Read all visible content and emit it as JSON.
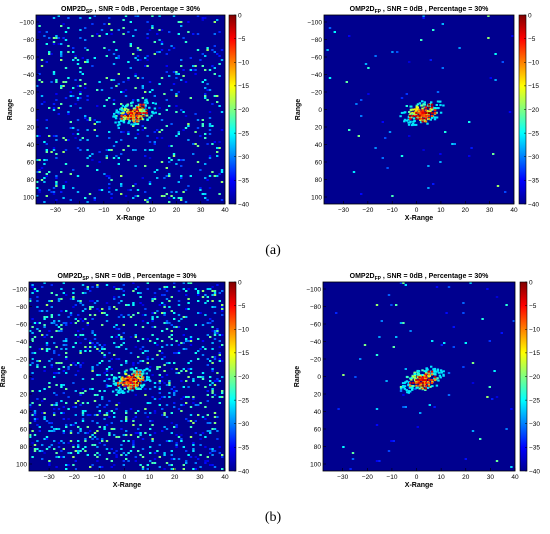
{
  "figure": {
    "captions": [
      "(a)",
      "(b)"
    ]
  },
  "colors": {
    "background": "#00008f",
    "colormap": [
      "#00008f",
      "#0000ff",
      "#0080ff",
      "#00ffff",
      "#80ff80",
      "#ffff00",
      "#ff8000",
      "#ff0000",
      "#800000"
    ]
  },
  "chart_data": [
    {
      "type": "heatmap",
      "title_main": "OMP2D",
      "title_sub": "SP",
      "title_rest": " , SNR = 0dB , Percentage = 30%",
      "xlabel": "X-Range",
      "ylabel": "Range",
      "xlim": [
        -38,
        40
      ],
      "ylim": [
        -108,
        108
      ],
      "y_reversed": true,
      "xticks": [
        "-30",
        "-20",
        "-10",
        "0",
        "10",
        "20",
        "30",
        "40"
      ],
      "yticks": [
        "-100",
        "-80",
        "-60",
        "-40",
        "-20",
        "0",
        "20",
        "40",
        "60",
        "80",
        "100"
      ],
      "clim": [
        -40,
        0
      ],
      "colorbar_ticks": [
        "0",
        "-5",
        "-10",
        "-15",
        "-20",
        "-25",
        "-30",
        "-35",
        "-40"
      ],
      "target_center": [
        2,
        3
      ],
      "background_scatter_fraction": 0.09
    },
    {
      "type": "heatmap",
      "title_main": "OMP2D",
      "title_sub": "FP",
      "title_rest": " , SNR = 0dB , Percentage = 30%",
      "xlabel": "X-Range",
      "ylabel": "Range",
      "xlim": [
        -38,
        40
      ],
      "ylim": [
        -108,
        108
      ],
      "y_reversed": true,
      "xticks": [
        "-30",
        "-20",
        "-10",
        "0",
        "10",
        "20",
        "30",
        "40"
      ],
      "yticks": [
        "-100",
        "-80",
        "-60",
        "-40",
        "-20",
        "0",
        "20",
        "40",
        "60",
        "80",
        "100"
      ],
      "clim": [
        -40,
        0
      ],
      "colorbar_ticks": [
        "0",
        "-5",
        "-10",
        "-15",
        "-20",
        "-25",
        "-30",
        "-35",
        "-40"
      ],
      "target_center": [
        2,
        3
      ],
      "background_scatter_fraction": 0.008
    },
    {
      "type": "heatmap",
      "title_main": "OMP2D",
      "title_sub": "SP",
      "title_rest": " , SNR = 0dB , Percentage = 30%",
      "xlabel": "X-Range",
      "ylabel": "Range",
      "xlim": [
        -38,
        40
      ],
      "ylim": [
        -108,
        108
      ],
      "y_reversed": true,
      "xticks": [
        "-30",
        "-20",
        "-10",
        "0",
        "10",
        "20",
        "30",
        "40"
      ],
      "yticks": [
        "-100",
        "-80",
        "-60",
        "-40",
        "-20",
        "0",
        "20",
        "40",
        "60",
        "80",
        "100"
      ],
      "clim": [
        -40,
        0
      ],
      "colorbar_ticks": [
        "0",
        "-5",
        "-10",
        "-15",
        "-20",
        "-25",
        "-30",
        "-35",
        "-40"
      ],
      "target_center": [
        2,
        3
      ],
      "background_scatter_fraction": 0.14
    },
    {
      "type": "heatmap",
      "title_main": "OMP2D",
      "title_sub": "FP",
      "title_rest": " , SNR = 0dB , Percentage = 30%",
      "xlabel": "X-Range",
      "ylabel": "Range",
      "xlim": [
        -38,
        40
      ],
      "ylim": [
        -108,
        108
      ],
      "y_reversed": true,
      "xticks": [
        "-30",
        "-20",
        "-10",
        "0",
        "10",
        "20",
        "30",
        "40"
      ],
      "yticks": [
        "-100",
        "-80",
        "-60",
        "-40",
        "-20",
        "0",
        "20",
        "40",
        "60",
        "80",
        "100"
      ],
      "clim": [
        -40,
        0
      ],
      "colorbar_ticks": [
        "0",
        "-5",
        "-10",
        "-15",
        "-20",
        "-25",
        "-30",
        "-35",
        "-40"
      ],
      "target_center": [
        2,
        3
      ],
      "background_scatter_fraction": 0.01
    }
  ]
}
